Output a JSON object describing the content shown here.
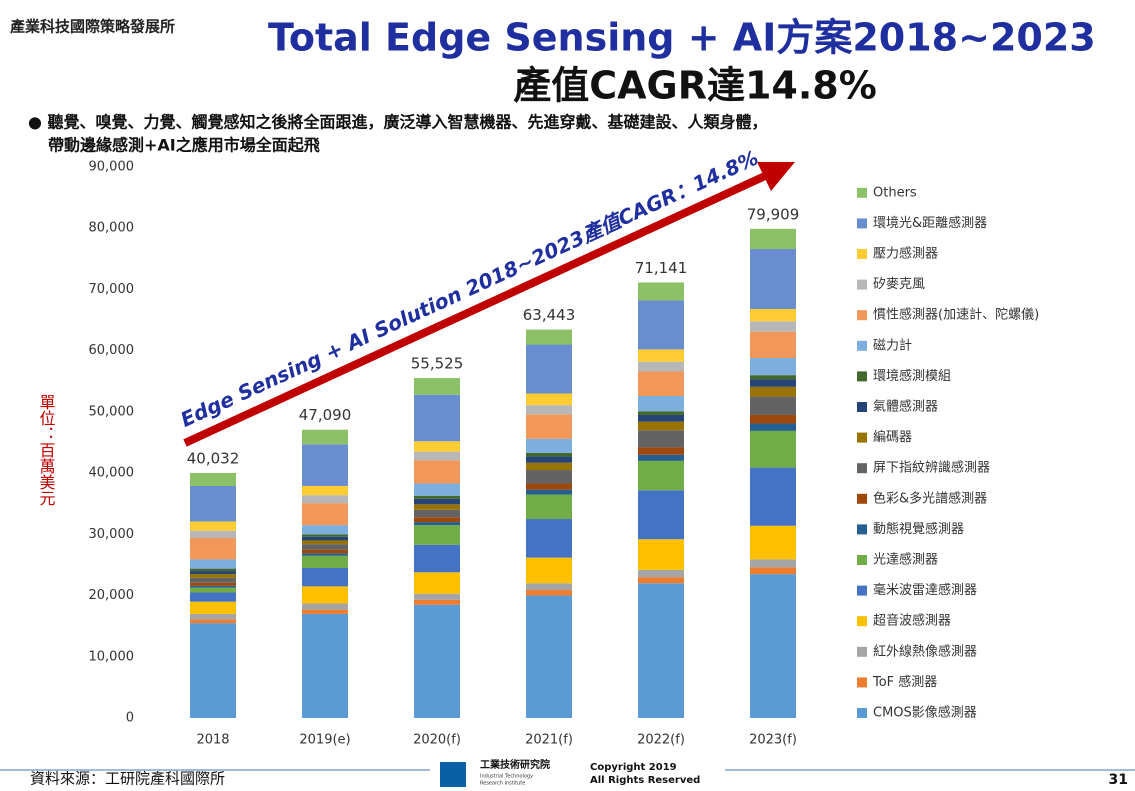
{
  "header": {
    "org": "產業科技國際策略發展所",
    "title_line1": "Total Edge Sensing + AI方案2018~2023",
    "title_line2": "產值CAGR達14.8%",
    "bullet_line1": "● 聽覺、嗅覺、力覺、觸覺感知之後將全面跟進，廣泛導入智慧機器、先進穿戴、基礎建設、人類身體，",
    "bullet_line2": "帶動邊緣感測+AI之應用市場全面起飛"
  },
  "chart_data": {
    "type": "stacked_bar",
    "y_label": "單位：百萬美元",
    "annotation": "Edge Sensing + AI Solution 2018~2023產值CAGR：14.8%",
    "categories": [
      "2018",
      "2019(e)",
      "2020(f)",
      "2021(f)",
      "2022(f)",
      "2023(f)"
    ],
    "ylim": [
      0,
      90000
    ],
    "yticks": [
      0,
      {
        "value": 10000,
        "label": "10,000"
      },
      {
        "value": 20000,
        "label": "20,000"
      },
      {
        "value": 30000,
        "label": "30,000"
      },
      {
        "value": 40000,
        "label": "40,000"
      },
      {
        "value": 50000,
        "label": "50,000"
      },
      {
        "value": 60000,
        "label": "60,000"
      },
      {
        "value": 70000,
        "label": "70,000"
      },
      {
        "value": 80000,
        "label": "80,000"
      },
      {
        "value": 90000,
        "label": "90,000"
      }
    ],
    "totals": [
      40032,
      47090,
      55525,
      63443,
      71141,
      79909
    ],
    "total_labels": [
      "40,032",
      "47,090",
      "55,525",
      "63,443",
      "71,141",
      "79,909"
    ],
    "series": [
      {
        "name": "CMOS影像感測器",
        "color": "#5b9bd5",
        "values": [
          15500,
          17000,
          18500,
          20000,
          22000,
          23500
        ]
      },
      {
        "name": "ToF 感測器",
        "color": "#ed7d31",
        "values": [
          600,
          700,
          800,
          900,
          1000,
          1100
        ]
      },
      {
        "name": "紅外線熱像感測器",
        "color": "#a5a5a5",
        "values": [
          900,
          1000,
          1000,
          1100,
          1200,
          1300
        ]
      },
      {
        "name": "超音波感測器",
        "color": "#ffc000",
        "values": [
          2000,
          2800,
          3500,
          4200,
          5000,
          5500
        ]
      },
      {
        "name": "毫米波雷達感測器",
        "color": "#4472c4",
        "values": [
          1500,
          3000,
          4500,
          6300,
          8000,
          9500
        ]
      },
      {
        "name": "光達感測器",
        "color": "#70ad47",
        "values": [
          800,
          2000,
          3200,
          4000,
          4800,
          6000
        ]
      },
      {
        "name": "動態視覺感測器",
        "color": "#255e91",
        "values": [
          300,
          400,
          500,
          800,
          1000,
          1200
        ]
      },
      {
        "name": "色彩&多光譜感測器",
        "color": "#9e480e",
        "values": [
          500,
          600,
          800,
          1000,
          1200,
          1400
        ]
      },
      {
        "name": "屏下指紋辨識感測器",
        "color": "#636363",
        "values": [
          800,
          900,
          1200,
          2200,
          2800,
          3000
        ]
      },
      {
        "name": "編碼器",
        "color": "#997300",
        "values": [
          600,
          600,
          900,
          1200,
          1400,
          1600
        ]
      },
      {
        "name": "氣體感測器",
        "color": "#264478",
        "values": [
          500,
          600,
          900,
          1000,
          1100,
          1200
        ]
      },
      {
        "name": "環境感測模組",
        "color": "#43682b",
        "values": [
          400,
          400,
          500,
          600,
          600,
          700
        ]
      },
      {
        "name": "磁力計",
        "color": "#7cafdd",
        "values": [
          1500,
          1500,
          2000,
          2300,
          2500,
          2800
        ]
      },
      {
        "name": "慣性感測器(加速計、陀螺儀)",
        "color": "#f1975a",
        "values": [
          3500,
          3600,
          3800,
          4000,
          4000,
          4300
        ]
      },
      {
        "name": "矽麥克風",
        "color": "#b7b7b7",
        "values": [
          1200,
          1300,
          1400,
          1500,
          1600,
          1700
        ]
      },
      {
        "name": "壓力感測器",
        "color": "#ffcd33",
        "values": [
          1500,
          1500,
          1700,
          1900,
          2000,
          2000
        ]
      },
      {
        "name": "環境光&距離感測器",
        "color": "#698ed0",
        "values": [
          5800,
          6800,
          7600,
          8000,
          8000,
          9800
        ]
      },
      {
        "name": "Others",
        "color": "#8cc168",
        "values": [
          2132,
          2390,
          2725,
          2443,
          2941,
          3309
        ]
      }
    ]
  },
  "footer": {
    "source": "資料來源：工研院產科國際所",
    "logo_cn": "工業技術研究院",
    "logo_en1": "Industrial Technology",
    "logo_en2": "Research Institute",
    "copyright": "Copyright 2019",
    "rights": "All Rights Reserved",
    "page": "31"
  }
}
